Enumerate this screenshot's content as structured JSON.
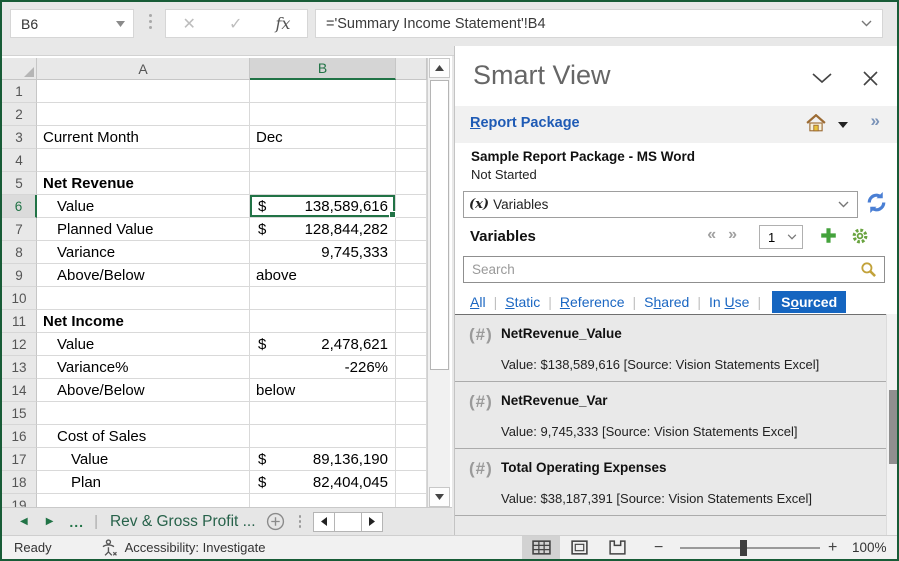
{
  "colors": {
    "excel_green": "#217346",
    "frame_green": "#185c37",
    "link_blue": "#1f5bb5",
    "sourced_bg": "#1565c0"
  },
  "formula_bar": {
    "name_box_value": "B6",
    "cancel_icon": "cancel-x",
    "enter_icon": "check",
    "fx_label": "fx",
    "formula_value": "='Summary Income Statement'!B4"
  },
  "grid": {
    "columns": [
      {
        "label": "A"
      },
      {
        "label": "B"
      }
    ],
    "selected_cell": "B6",
    "rows": [
      {
        "num": "1",
        "a": ""
      },
      {
        "num": "2",
        "a": ""
      },
      {
        "num": "3",
        "a": "Current Month",
        "b": "Dec",
        "b_align": "left"
      },
      {
        "num": "4",
        "a": ""
      },
      {
        "num": "5",
        "a": "Net Revenue",
        "a_bold": true
      },
      {
        "num": "6",
        "a": "Value",
        "a_indent": 1,
        "b_dollar": "$",
        "b": "138,589,616",
        "selected": true
      },
      {
        "num": "7",
        "a": "Planned Value",
        "a_indent": 1,
        "b_dollar": "$",
        "b": "128,844,282"
      },
      {
        "num": "8",
        "a": "Variance",
        "a_indent": 1,
        "b": "9,745,333",
        "b_align": "right"
      },
      {
        "num": "9",
        "a": "Above/Below",
        "a_indent": 1,
        "b": "above",
        "b_align": "left"
      },
      {
        "num": "10",
        "a": ""
      },
      {
        "num": "11",
        "a": "Net Income",
        "a_bold": true
      },
      {
        "num": "12",
        "a": "Value",
        "a_indent": 1,
        "b_dollar": "$",
        "b": "2,478,621"
      },
      {
        "num": "13",
        "a": "Variance%",
        "a_indent": 1,
        "b": "-226%",
        "b_align": "right"
      },
      {
        "num": "14",
        "a": "Above/Below",
        "a_indent": 1,
        "b": "below",
        "b_align": "left"
      },
      {
        "num": "15",
        "a": ""
      },
      {
        "num": "16",
        "a": "Cost of Sales",
        "a_indent": 1
      },
      {
        "num": "17",
        "a": "Value",
        "a_indent": 2,
        "b_dollar": "$",
        "b": "89,136,190"
      },
      {
        "num": "18",
        "a": "Plan",
        "a_indent": 2,
        "b_dollar": "$",
        "b": "82,404,045"
      },
      {
        "num": "19",
        "a": ""
      }
    ]
  },
  "sheet_tabs": {
    "prev_icon": "prev-sheet",
    "next_icon": "next-sheet",
    "more_label": "...",
    "divider": "|",
    "active_tab": "Rev & Gross Profit ...",
    "add_sheet_icon": "add-sheet"
  },
  "smartview": {
    "title": "Smart View",
    "breadcrumb_label_parts": {
      "u": "R",
      "rest": "eport Package"
    },
    "package_name": "Sample Report Package - MS Word",
    "package_status": "Not Started",
    "content_selector": {
      "prefix": "(x)",
      "label": "Variables"
    },
    "section_title": "Variables",
    "nav_prev": "«",
    "nav_next": "»",
    "page_value": "1",
    "search_placeholder": "Search",
    "filters": [
      {
        "pre": "",
        "u": "A",
        "post": "ll",
        "active": false
      },
      {
        "pre": "",
        "u": "S",
        "post": "tatic",
        "active": false
      },
      {
        "pre": "",
        "u": "R",
        "post": "eference",
        "active": false
      },
      {
        "pre": "S",
        "u": "h",
        "post": "ared",
        "active": false
      },
      {
        "pre": "In ",
        "u": "U",
        "post": "se",
        "active": false
      },
      {
        "pre": "S",
        "u": "o",
        "post": "urced",
        "active": true
      }
    ],
    "variables": [
      {
        "icon": "(#)",
        "name": "NetRevenue_Value",
        "detail": "Value:  $138,589,616  [Source: Vision Statements Excel]"
      },
      {
        "icon": "(#)",
        "name": "NetRevenue_Var",
        "detail": "Value:  9,745,333  [Source: Vision Statements Excel]"
      },
      {
        "icon": "(#)",
        "name": "Total Operating Expenses",
        "detail": "Value:  $38,187,391  [Source: Vision Statements Excel]"
      }
    ],
    "chevrons_more": "»"
  },
  "status_bar": {
    "ready_label": "Ready",
    "accessibility_label": "Accessibility: Investigate",
    "zoom_label": "100%"
  }
}
